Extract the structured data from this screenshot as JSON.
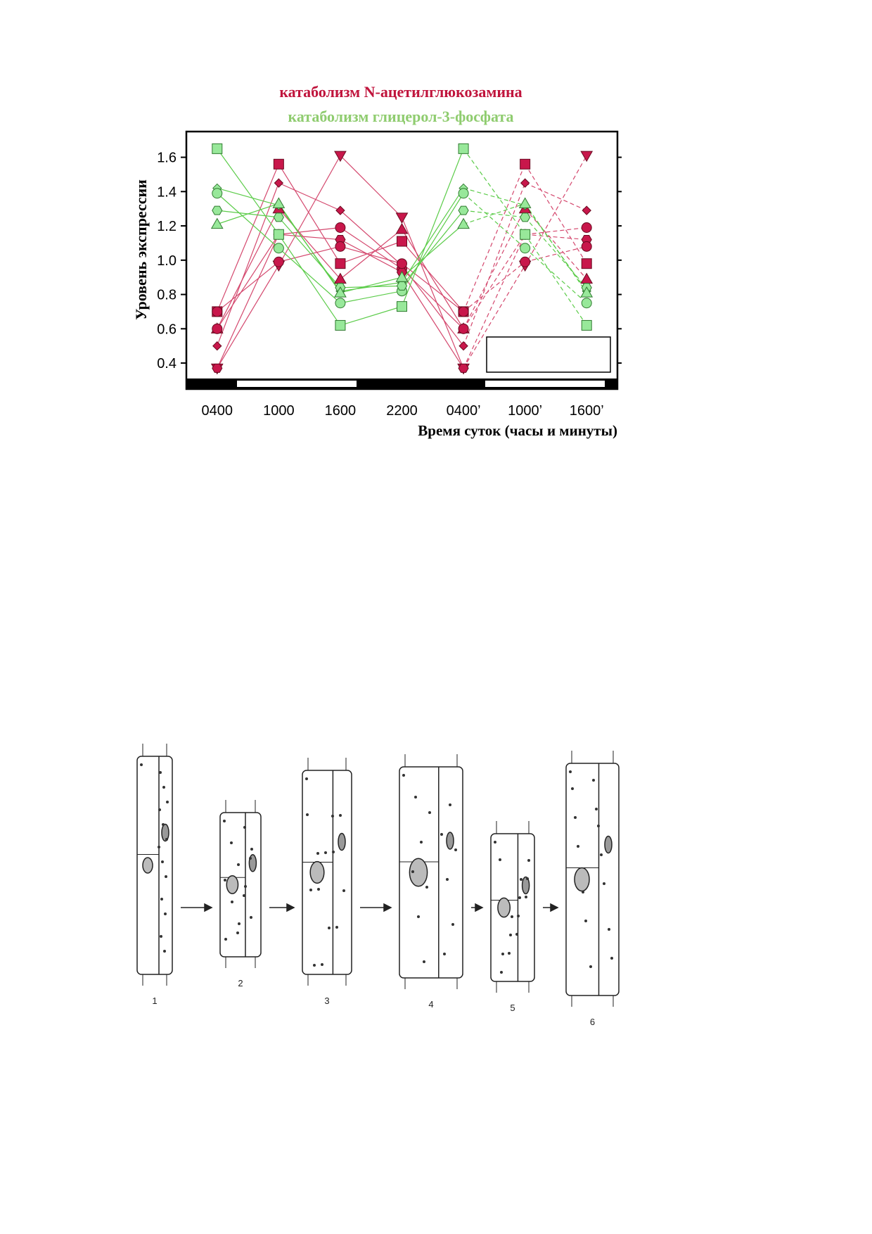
{
  "chart_data": {
    "type": "line",
    "title": "катаболизм N-ацетилглюкозамина",
    "subtitle": "катаболизм глицерол-3-фосфата",
    "title_color": "#c0143c",
    "subtitle_color": "#8fcc6f",
    "y_label": "Уровень экспрессии",
    "x_label": "Время суток (часы и минуты)",
    "categories": [
      "0400",
      "1000",
      "1600",
      "2200",
      "0400’",
      "1000’",
      "1600’"
    ],
    "ylim": [
      0.31,
      1.75
    ],
    "yticks": [
      {
        "value": 0.4,
        "label": "0.4"
      },
      {
        "value": 0.6,
        "label": "0.6"
      },
      {
        "value": 0.8,
        "label": "0.8"
      },
      {
        "value": 1.0,
        "label": "1.0"
      },
      {
        "value": 1.2,
        "label": "1.2"
      },
      {
        "value": 1.4,
        "label": "1.4"
      },
      {
        "value": 1.6,
        "label": "1.6"
      }
    ],
    "series": [
      {
        "color": "#c8174b",
        "marker": "square",
        "values": [
          0.7,
          1.56,
          0.98,
          1.11,
          0.7,
          1.56,
          0.98
        ]
      },
      {
        "color": "#c8174b",
        "marker": "diamond",
        "values": [
          0.5,
          1.45,
          1.29,
          0.97,
          0.5,
          1.45,
          1.29
        ]
      },
      {
        "color": "#c8174b",
        "marker": "triangle",
        "values": [
          0.6,
          1.3,
          0.89,
          1.18,
          0.6,
          1.3,
          0.89
        ]
      },
      {
        "color": "#c8174b",
        "marker": "circle",
        "values": [
          0.6,
          1.15,
          1.19,
          0.95,
          0.6,
          1.15,
          1.19
        ]
      },
      {
        "color": "#c8174b",
        "marker": "inv-triangle",
        "values": [
          0.37,
          0.97,
          1.61,
          1.25,
          0.37,
          0.97,
          1.61
        ]
      },
      {
        "color": "#c8174b",
        "marker": "hexagon",
        "values": [
          0.37,
          1.15,
          1.12,
          0.93,
          0.37,
          1.15,
          1.12
        ]
      },
      {
        "color": "#c8174b",
        "marker": "circle",
        "values": [
          0.7,
          0.99,
          1.08,
          0.98,
          0.7,
          0.99,
          1.08
        ]
      },
      {
        "color": "#98e89a",
        "marker": "square",
        "values": [
          1.65,
          1.15,
          0.62,
          0.73,
          1.65,
          1.15,
          0.62
        ]
      },
      {
        "color": "#98e89a",
        "marker": "diamond",
        "values": [
          1.42,
          1.32,
          0.82,
          0.87,
          1.42,
          1.32,
          0.82
        ]
      },
      {
        "color": "#98e89a",
        "marker": "circle",
        "values": [
          1.39,
          1.07,
          0.75,
          0.82,
          1.39,
          1.07,
          0.75
        ]
      },
      {
        "color": "#98e89a",
        "marker": "hexagon",
        "values": [
          1.29,
          1.25,
          0.84,
          0.85,
          1.29,
          1.25,
          0.84
        ]
      },
      {
        "color": "#98e89a",
        "marker": "triangle",
        "values": [
          1.21,
          1.33,
          0.81,
          0.9,
          1.21,
          1.33,
          0.81
        ]
      }
    ]
  },
  "figure": {
    "labels": [
      "1",
      "2",
      "3",
      "4",
      "5",
      "6"
    ]
  }
}
